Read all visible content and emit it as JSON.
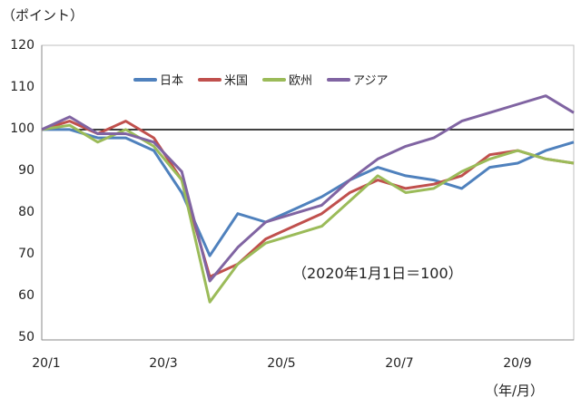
{
  "chart_data": {
    "type": "line",
    "title": "",
    "ylabel": "（ポイント）",
    "xlabel": "（年/月）",
    "annotation": "（2020年1月1日＝100）",
    "ylim": [
      50,
      120
    ],
    "yticks": [
      "120",
      "110",
      "100",
      "90",
      "80",
      "70",
      "60",
      "50"
    ],
    "xticks": [
      "20/1",
      "20/3",
      "20/5",
      "20/7",
      "20/9"
    ],
    "reference_line": 100,
    "grid": false,
    "legend_position": "top-inside",
    "x": [
      "20/1",
      "20/1m",
      "20/2",
      "20/2m",
      "20/3",
      "20/3m",
      "20/3e",
      "20/4",
      "20/4m",
      "20/5",
      "20/5m",
      "20/6",
      "20/6m",
      "20/7",
      "20/7m",
      "20/8",
      "20/8m",
      "20/9",
      "20/9m",
      "20/10"
    ],
    "series": [
      {
        "name": "日本",
        "color": "#4f81bd",
        "values": [
          100,
          100,
          98,
          98,
          95,
          85,
          70,
          80,
          78,
          81,
          84,
          88,
          91,
          89,
          88,
          86,
          91,
          92,
          95,
          97
        ]
      },
      {
        "name": "米国",
        "color": "#c0504d",
        "values": [
          100,
          102,
          99,
          102,
          98,
          88,
          65,
          68,
          74,
          77,
          80,
          85,
          88,
          86,
          87,
          89,
          94,
          95,
          93,
          92
        ]
      },
      {
        "name": "欧州",
        "color": "#9bbb59",
        "values": [
          100,
          101,
          97,
          100,
          96,
          88,
          59,
          68,
          73,
          75,
          77,
          83,
          89,
          85,
          86,
          90,
          93,
          95,
          93,
          92
        ]
      },
      {
        "name": "アジア",
        "color": "#8064a2",
        "values": [
          100,
          103,
          99,
          99,
          97,
          90,
          64,
          72,
          78,
          80,
          82,
          88,
          93,
          96,
          98,
          102,
          104,
          106,
          108,
          104
        ]
      }
    ]
  },
  "labels": {
    "y_unit": "（ポイント）",
    "x_unit": "（年/月）",
    "note": "（2020年1月1日＝100）"
  },
  "legend": [
    {
      "label": "日本",
      "color": "#4f81bd"
    },
    {
      "label": "米国",
      "color": "#c0504d"
    },
    {
      "label": "欧州",
      "color": "#9bbb59"
    },
    {
      "label": "アジア",
      "color": "#8064a2"
    }
  ],
  "axis": {
    "yticks": [
      "120",
      "110",
      "100",
      "90",
      "80",
      "70",
      "60",
      "50"
    ],
    "xticks": [
      "20/1",
      "20/3",
      "20/5",
      "20/7",
      "20/9"
    ]
  }
}
